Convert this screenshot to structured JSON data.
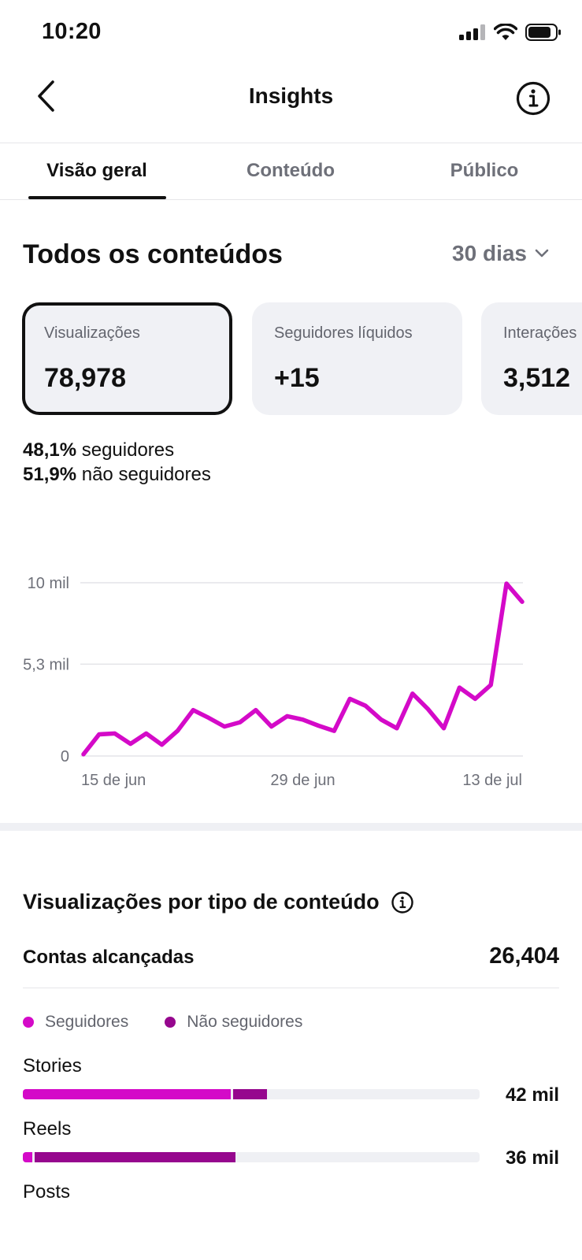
{
  "status_bar": {
    "time": "10:20"
  },
  "nav": {
    "title": "Insights"
  },
  "tabs": [
    {
      "label": "Visão geral",
      "active": true
    },
    {
      "label": "Conteúdo",
      "active": false
    },
    {
      "label": "Público",
      "active": false
    }
  ],
  "overview": {
    "title": "Todos os conteúdos",
    "range": "30 dias"
  },
  "cards": [
    {
      "label": "Visualizações",
      "value": "78,978",
      "selected": true
    },
    {
      "label": "Seguidores líquidos",
      "value": "+15",
      "selected": false
    },
    {
      "label": "Interações",
      "value": "3,512",
      "selected": false
    }
  ],
  "split": {
    "followers_pct": "48,1%",
    "followers_label": "seguidores",
    "nonfollowers_pct": "51,9%",
    "nonfollowers_label": "não seguidores"
  },
  "chart_data": {
    "type": "line",
    "y_tick_labels": [
      "0",
      "5,3 mil",
      "10 mil"
    ],
    "y_ticks": [
      0,
      5300,
      10000
    ],
    "ylim": [
      0,
      10000
    ],
    "x_tick_labels": [
      "15 de jun",
      "29 de jun",
      "13 de jul"
    ],
    "x_tick_index": [
      0,
      12,
      24
    ],
    "color": "#d40ac8",
    "grid": true,
    "series": [
      {
        "values": [
          100,
          1250,
          1300,
          700,
          1300,
          650,
          1450,
          2650,
          2200,
          1700,
          1950,
          2650,
          1700,
          2300,
          2100,
          1750,
          1450,
          3300,
          2900,
          2100,
          1600,
          3600,
          2700,
          1600,
          3950,
          3300,
          4100,
          9950,
          8900
        ]
      }
    ]
  },
  "views_by_type": {
    "title": "Visualizações por tipo de conteúdo",
    "reach_label": "Contas alcançadas",
    "reach_value": "26,404",
    "legend": [
      {
        "label": "Seguidores",
        "color": "#d40ac8"
      },
      {
        "label": "Não seguidores",
        "color": "#96078e"
      }
    ],
    "bars": [
      {
        "label": "Stories",
        "followers_fraction": 0.455,
        "nonfollowers_fraction": 0.075,
        "value": "42 mil"
      },
      {
        "label": "Reels",
        "followers_fraction": 0.02,
        "nonfollowers_fraction": 0.44,
        "value": "36 mil"
      },
      {
        "label": "Posts"
      }
    ]
  }
}
